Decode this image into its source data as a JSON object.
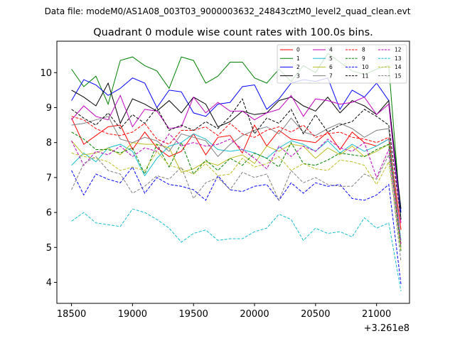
{
  "suptitle": "Data file: modeM0/AS1A08_003T03_9000003632_24843cztM0_level2_quad_clean.evt",
  "chart_data": {
    "type": "line",
    "title": "Quadrant 0 module wise count rates with 100.0s bins.",
    "xlabel": "",
    "ylabel": "",
    "x_offset_label": "+3.261e8",
    "xlim": [
      18380,
      21270
    ],
    "ylim": [
      3.4,
      10.9
    ],
    "xticks": [
      18500,
      19000,
      19500,
      20000,
      20500,
      21000
    ],
    "yticks": [
      4,
      5,
      6,
      7,
      8,
      9,
      10
    ],
    "legend_position": "top-right",
    "x": [
      18500,
      18600,
      18700,
      18800,
      18900,
      19000,
      19100,
      19200,
      19300,
      19400,
      19500,
      19600,
      19700,
      19800,
      19900,
      20000,
      20100,
      20200,
      20300,
      20400,
      20500,
      20600,
      20700,
      20800,
      20900,
      21000,
      21100,
      21200
    ],
    "series": [
      {
        "name": "0",
        "color": "#ff0000",
        "dash": "solid",
        "values": [
          8.7,
          7.95,
          8.2,
          8.45,
          8.5,
          7.8,
          8.3,
          7.85,
          7.6,
          7.75,
          8.25,
          7.65,
          8.15,
          8.2,
          7.7,
          8.5,
          7.9,
          8.35,
          8.1,
          8.05,
          8.0,
          8.3,
          7.8,
          8.3,
          8.0,
          7.9,
          8.1,
          5.5
        ]
      },
      {
        "name": "1",
        "color": "#008000",
        "dash": "solid",
        "values": [
          10.1,
          9.6,
          9.9,
          9.1,
          10.35,
          10.45,
          10.2,
          10.05,
          9.55,
          10.45,
          10.35,
          9.7,
          9.9,
          10.3,
          10.3,
          9.85,
          9.7,
          10.1,
          9.75,
          10.2,
          10.0,
          10.55,
          10.3,
          10.05,
          9.95,
          10.1,
          10.2,
          5.8
        ]
      },
      {
        "name": "2",
        "color": "#0000ff",
        "dash": "solid",
        "values": [
          9.2,
          9.8,
          9.65,
          9.35,
          9.55,
          9.85,
          9.7,
          9.0,
          9.5,
          9.45,
          8.85,
          8.75,
          9.1,
          9.15,
          9.6,
          9.65,
          8.95,
          9.25,
          9.7,
          9.8,
          9.75,
          9.85,
          8.95,
          9.5,
          9.3,
          9.7,
          9.2,
          6.0
        ]
      },
      {
        "name": "3",
        "color": "#000000",
        "dash": "solid",
        "values": [
          9.5,
          9.3,
          9.05,
          9.7,
          8.55,
          9.25,
          9.1,
          8.9,
          9.2,
          8.85,
          9.3,
          9.1,
          8.45,
          8.6,
          8.9,
          8.8,
          8.85,
          9.2,
          9.3,
          9.05,
          8.9,
          9.3,
          8.85,
          9.2,
          9.05,
          8.8,
          9.2,
          6.1
        ]
      },
      {
        "name": "4",
        "color": "#bf00bf",
        "dash": "solid",
        "values": [
          8.65,
          9.05,
          8.75,
          8.65,
          9.35,
          8.45,
          8.95,
          8.9,
          8.4,
          8.45,
          9.3,
          8.85,
          9.15,
          8.9,
          8.9,
          8.65,
          8.85,
          8.95,
          9.35,
          8.75,
          9.25,
          9.2,
          9.1,
          9.15,
          9.3,
          8.8,
          9.1,
          5.7
        ]
      },
      {
        "name": "5",
        "color": "#17becf",
        "dash": "solid",
        "values": [
          7.35,
          7.7,
          7.45,
          7.85,
          7.95,
          7.75,
          7.05,
          7.55,
          7.9,
          8.0,
          8.25,
          8.1,
          7.8,
          7.75,
          7.8,
          7.7,
          7.55,
          7.85,
          8.05,
          7.95,
          7.75,
          8.05,
          7.7,
          7.95,
          7.75,
          7.9,
          8.1,
          5.2
        ]
      },
      {
        "name": "6",
        "color": "#bcbd22",
        "dash": "solid",
        "values": [
          8.05,
          7.65,
          7.7,
          7.85,
          7.65,
          8.0,
          7.95,
          7.95,
          7.85,
          7.15,
          7.25,
          7.45,
          7.35,
          7.55,
          7.65,
          7.4,
          7.9,
          7.75,
          7.95,
          7.9,
          7.55,
          7.85,
          7.65,
          7.9,
          7.6,
          7.75,
          7.95,
          5.1
        ]
      },
      {
        "name": "7",
        "color": "#7f7f7f",
        "dash": "solid",
        "values": [
          8.5,
          8.55,
          8.65,
          8.75,
          8.1,
          8.0,
          8.15,
          8.05,
          7.75,
          8.25,
          8.15,
          8.05,
          7.6,
          7.95,
          8.2,
          8.35,
          8.45,
          8.25,
          8.7,
          8.3,
          8.2,
          8.4,
          8.55,
          8.4,
          8.15,
          8.35,
          8.4,
          5.0
        ]
      },
      {
        "name": "8",
        "color": "#ff0000",
        "dash": "dashed",
        "values": [
          8.75,
          8.65,
          8.4,
          8.25,
          8.2,
          8.3,
          8.55,
          8.1,
          7.95,
          8.35,
          8.35,
          8.45,
          8.2,
          8.55,
          8.25,
          8.15,
          8.35,
          8.45,
          8.3,
          8.5,
          8.15,
          8.25,
          8.3,
          8.15,
          8.1,
          8.0,
          8.15,
          5.5
        ]
      },
      {
        "name": "9",
        "color": "#008000",
        "dash": "dashed",
        "values": [
          8.3,
          8.1,
          7.8,
          7.8,
          7.7,
          7.85,
          7.1,
          7.95,
          7.3,
          8.0,
          7.1,
          7.5,
          7.2,
          7.55,
          7.35,
          7.7,
          7.55,
          7.3,
          8.0,
          7.4,
          7.35,
          7.5,
          7.7,
          7.65,
          7.6,
          7.8,
          7.95,
          4.9
        ]
      },
      {
        "name": "10",
        "color": "#0000ff",
        "dash": "dashed",
        "values": [
          7.2,
          6.5,
          7.1,
          6.95,
          6.85,
          7.3,
          6.55,
          7.0,
          6.8,
          6.75,
          6.65,
          6.35,
          7.05,
          6.65,
          6.6,
          6.75,
          6.8,
          6.35,
          6.85,
          6.55,
          6.85,
          6.75,
          6.8,
          6.4,
          6.35,
          6.5,
          6.8,
          3.95
        ]
      },
      {
        "name": "11",
        "color": "#000000",
        "dash": "dashed",
        "values": [
          8.95,
          8.7,
          8.5,
          8.85,
          8.4,
          8.8,
          8.55,
          9.0,
          8.35,
          8.5,
          8.35,
          8.6,
          8.4,
          8.75,
          9.25,
          8.25,
          8.7,
          8.55,
          8.95,
          8.25,
          8.8,
          8.3,
          8.5,
          8.6,
          8.95,
          8.75,
          8.5,
          5.8
        ]
      },
      {
        "name": "12",
        "color": "#bf00bf",
        "dash": "dashed",
        "values": [
          8.05,
          7.35,
          7.75,
          7.65,
          7.9,
          7.6,
          7.85,
          7.75,
          8.25,
          7.9,
          8.0,
          7.9,
          7.95,
          8.1,
          7.8,
          7.55,
          7.25,
          7.9,
          7.6,
          7.9,
          7.75,
          8.1,
          7.85,
          7.75,
          8.0,
          7.0,
          7.8,
          5.1
        ]
      },
      {
        "name": "13",
        "color": "#17becf",
        "dash": "dashed",
        "values": [
          5.75,
          6.0,
          5.7,
          5.65,
          5.6,
          6.1,
          6.0,
          5.8,
          5.55,
          5.15,
          5.4,
          5.5,
          5.2,
          5.25,
          5.25,
          5.45,
          5.55,
          5.95,
          5.8,
          5.2,
          5.55,
          5.4,
          5.45,
          5.3,
          5.85,
          5.55,
          5.7,
          3.75
        ]
      },
      {
        "name": "14",
        "color": "#bcbd22",
        "dash": "dashed",
        "values": [
          7.7,
          7.6,
          7.55,
          7.45,
          7.2,
          7.3,
          7.2,
          7.75,
          7.35,
          7.25,
          7.1,
          7.4,
          7.05,
          7.1,
          7.55,
          7.3,
          7.4,
          7.6,
          7.2,
          7.4,
          7.25,
          7.2,
          7.5,
          7.45,
          7.35,
          6.8,
          7.45,
          4.9
        ]
      },
      {
        "name": "15",
        "color": "#7f7f7f",
        "dash": "dashed",
        "values": [
          6.65,
          7.4,
          7.6,
          7.2,
          7.1,
          6.55,
          6.75,
          7.05,
          6.95,
          7.3,
          6.4,
          6.85,
          7.0,
          6.65,
          7.15,
          7.0,
          7.1,
          6.35,
          7.2,
          6.85,
          7.0,
          6.8,
          6.75,
          6.75,
          7.1,
          6.95,
          7.65,
          4.6
        ]
      }
    ]
  }
}
